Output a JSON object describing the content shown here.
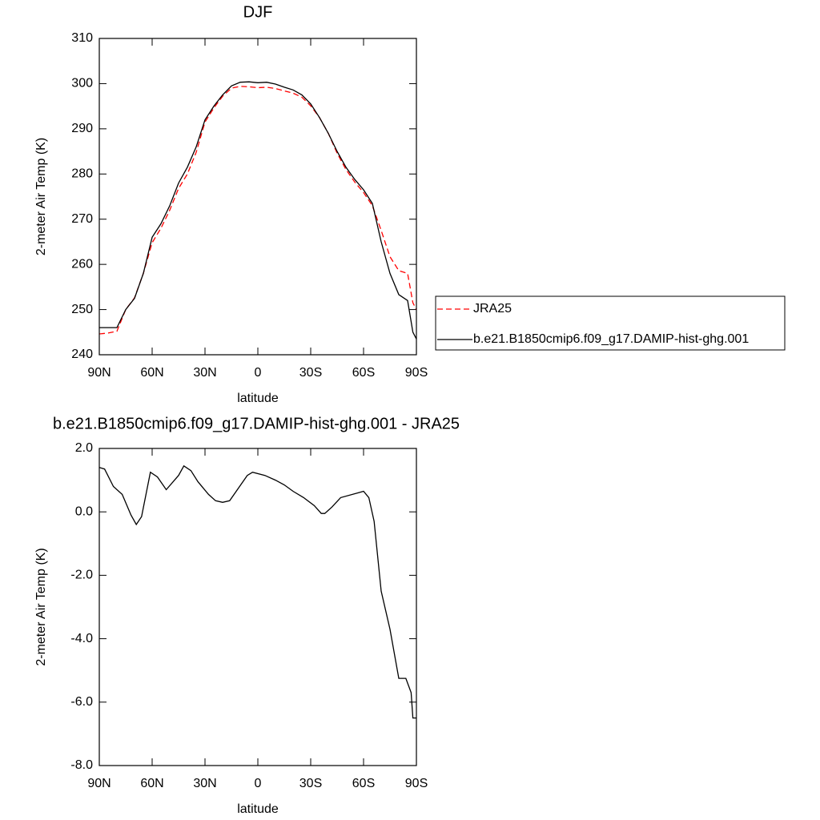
{
  "chart_data": [
    {
      "type": "line",
      "title": "DJF",
      "x_label": "latitude",
      "y_label": "2-meter Air Temp (K)",
      "x": [
        90,
        85,
        80,
        75,
        70,
        65,
        60,
        55,
        50,
        45,
        40,
        35,
        30,
        25,
        20,
        15,
        10,
        5,
        0,
        -5,
        -10,
        -15,
        -20,
        -25,
        -30,
        -35,
        -40,
        -45,
        -50,
        -55,
        -60,
        -65,
        -70,
        -75,
        -80,
        -85,
        -88,
        -90
      ],
      "series": [
        {
          "name": "JRA25",
          "color": "#ff0000",
          "line_style": "dashed",
          "values": [
            244.6,
            244.8,
            245.2,
            250,
            252.6,
            258,
            264.8,
            268,
            272,
            276.8,
            280,
            284.8,
            291.5,
            294.6,
            297.2,
            299,
            299.4,
            299.3,
            299.1,
            299.2,
            298.9,
            298.4,
            297.9,
            297,
            295.1,
            292.5,
            289,
            284.6,
            281,
            278.2,
            275.9,
            273,
            267.5,
            261.7,
            258.6,
            258,
            251.5,
            250
          ]
        },
        {
          "name": "b.e21.B1850cmip6.f09_g17.DAMIP-hist-ghg.001",
          "color": "#000000",
          "line_style": "solid",
          "values": [
            246,
            246,
            246,
            250,
            252.5,
            258,
            266,
            269,
            273,
            278,
            281.5,
            286,
            292,
            295,
            297.5,
            299.5,
            300.3,
            300.4,
            300.2,
            300.3,
            299.9,
            299.2,
            298.6,
            297.5,
            295.5,
            292.5,
            289,
            285,
            281.5,
            278.8,
            276.5,
            273.5,
            265,
            258,
            253.3,
            252,
            245,
            243.5
          ]
        }
      ],
      "xlim": [
        90,
        -90
      ],
      "xticks": [
        {
          "value": 90,
          "label": "90N"
        },
        {
          "value": 60,
          "label": "60N"
        },
        {
          "value": 30,
          "label": "30N"
        },
        0,
        {
          "value": -30,
          "label": "30S"
        },
        {
          "value": -60,
          "label": "60S"
        },
        {
          "value": -90,
          "label": "90S"
        }
      ],
      "ylim": [
        240,
        310
      ],
      "yticks": [
        240,
        250,
        260,
        270,
        280,
        290,
        300,
        310
      ],
      "legend": "right"
    },
    {
      "type": "line",
      "title": "b.e21.B1850cmip6.f09_g17.DAMIP-hist-ghg.001 - JRA25",
      "x_label": "latitude",
      "y_label": "2-meter Air Temp (K)",
      "x": [
        90,
        87,
        82,
        77,
        72,
        69,
        66,
        61,
        57,
        52,
        45,
        42,
        38,
        34,
        28,
        24,
        20,
        16,
        11,
        6,
        3,
        -4,
        -10,
        -15,
        -20,
        -26,
        -32,
        -36,
        -38,
        -42,
        -47,
        -57,
        -60,
        -63,
        -66,
        -70,
        -75,
        -80,
        -84,
        -87,
        -88,
        -90
      ],
      "series": [
        {
          "name": "difference",
          "color": "#000000",
          "line_style": "solid",
          "values": [
            1.4,
            1.35,
            0.8,
            0.55,
            -0.1,
            -0.4,
            -0.15,
            1.25,
            1.1,
            0.7,
            1.15,
            1.45,
            1.3,
            0.95,
            0.55,
            0.35,
            0.3,
            0.35,
            0.75,
            1.15,
            1.25,
            1.15,
            1.0,
            0.85,
            0.65,
            0.45,
            0.2,
            -0.05,
            -0.05,
            0.15,
            0.45,
            0.6,
            0.65,
            0.45,
            -0.3,
            -2.5,
            -3.7,
            -5.25,
            -5.25,
            -5.7,
            -6.5,
            -6.5
          ]
        }
      ],
      "xlim": [
        90,
        -90
      ],
      "xticks": [
        {
          "value": 90,
          "label": "90N"
        },
        {
          "value": 60,
          "label": "60N"
        },
        {
          "value": 30,
          "label": "30N"
        },
        0,
        {
          "value": -30,
          "label": "30S"
        },
        {
          "value": -60,
          "label": "60S"
        },
        {
          "value": -90,
          "label": "90S"
        }
      ],
      "ylim": [
        -8,
        2
      ],
      "yticks": [
        {
          "value": -8,
          "label": "-8.0"
        },
        {
          "value": -6,
          "label": "-6.0"
        },
        {
          "value": -4,
          "label": "-4.0"
        },
        {
          "value": -2,
          "label": "-2.0"
        },
        {
          "value": 0,
          "label": "0.0"
        },
        {
          "value": 2,
          "label": "2.0"
        }
      ]
    }
  ]
}
